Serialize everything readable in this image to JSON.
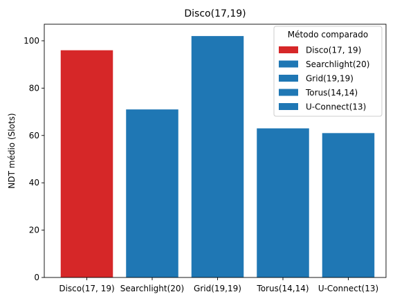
{
  "chart_data": {
    "type": "bar",
    "title": "Disco(17,19)",
    "xlabel": "",
    "ylabel": "NDT médio (Slots)",
    "categories": [
      "Disco(17, 19)",
      "Searchlight(20)",
      "Grid(19,19)",
      "Torus(14,14)",
      "U-Connect(13)"
    ],
    "values": [
      96,
      71,
      102,
      63,
      61
    ],
    "colors": [
      "#d62728",
      "#1f77b4",
      "#1f77b4",
      "#1f77b4",
      "#1f77b4"
    ],
    "ylim": [
      0,
      107
    ],
    "yticks": [
      0,
      20,
      40,
      60,
      80,
      100
    ],
    "grid": false,
    "legend": {
      "title": "Método comparado",
      "placement": "top-right",
      "entries": [
        {
          "label": "Disco(17, 19)",
          "color": "#d62728"
        },
        {
          "label": "Searchlight(20)",
          "color": "#1f77b4"
        },
        {
          "label": "Grid(19,19)",
          "color": "#1f77b4"
        },
        {
          "label": "Torus(14,14)",
          "color": "#1f77b4"
        },
        {
          "label": "U-Connect(13)",
          "color": "#1f77b4"
        }
      ]
    }
  }
}
